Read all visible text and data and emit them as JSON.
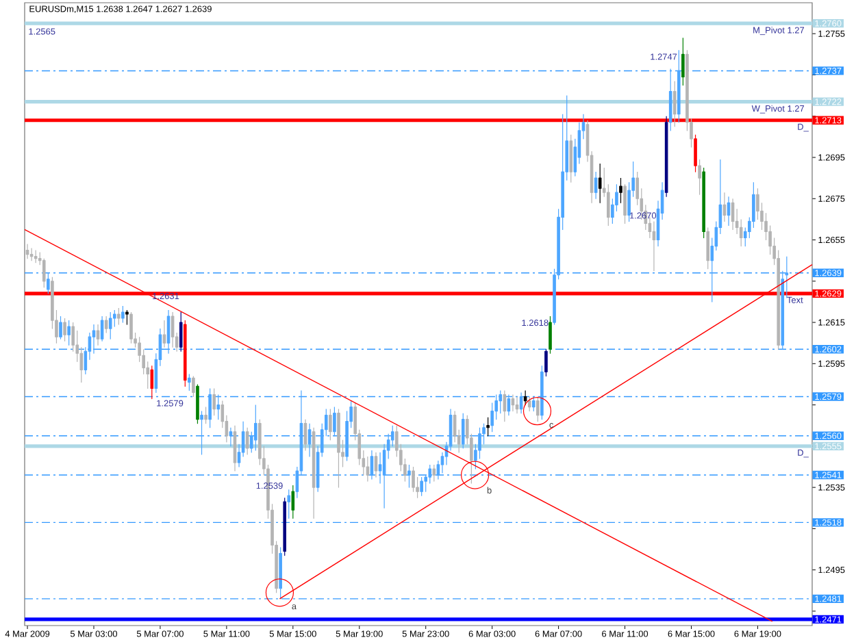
{
  "chart_data": {
    "type": "candlestick",
    "title": "EURUSDm,M15 1.2638 1.2647 1.2627 1.2639",
    "x": [
      "2009-03-04T23:00",
      "2009-03-04T23:15",
      "2009-03-04T23:30",
      "2009-03-04T23:45",
      "2009-03-05T00:00",
      "2009-03-05T00:15",
      "2009-03-05T00:30",
      "2009-03-05T00:45",
      "2009-03-05T01:00",
      "2009-03-05T01:15",
      "2009-03-05T01:30",
      "2009-03-05T01:45",
      "2009-03-05T02:00",
      "2009-03-05T02:15",
      "2009-03-05T02:30",
      "2009-03-05T02:45",
      "2009-03-05T03:00",
      "2009-03-05T03:15",
      "2009-03-05T03:30",
      "2009-03-05T03:45",
      "2009-03-05T04:00",
      "2009-03-05T04:15",
      "2009-03-05T04:30",
      "2009-03-05T04:45",
      "2009-03-05T05:00",
      "2009-03-05T05:15",
      "2009-03-05T05:30",
      "2009-03-05T05:45",
      "2009-03-05T06:00",
      "2009-03-05T06:15",
      "2009-03-05T06:30",
      "2009-03-05T06:45",
      "2009-03-05T07:00",
      "2009-03-05T07:15",
      "2009-03-05T07:30",
      "2009-03-05T07:45",
      "2009-03-05T08:00",
      "2009-03-05T08:15",
      "2009-03-05T08:30",
      "2009-03-05T08:45",
      "2009-03-05T09:00",
      "2009-03-05T09:15",
      "2009-03-05T09:30",
      "2009-03-05T09:45",
      "2009-03-05T10:00",
      "2009-03-05T10:15",
      "2009-03-05T10:30",
      "2009-03-05T10:45",
      "2009-03-05T11:00",
      "2009-03-05T11:15",
      "2009-03-05T11:30",
      "2009-03-05T11:45",
      "2009-03-05T12:00",
      "2009-03-05T12:15",
      "2009-03-05T12:30",
      "2009-03-05T12:45",
      "2009-03-05T13:00",
      "2009-03-05T13:15",
      "2009-03-05T13:30",
      "2009-03-05T13:45",
      "2009-03-05T14:00",
      "2009-03-05T14:15",
      "2009-03-05T14:30",
      "2009-03-05T14:45",
      "2009-03-05T15:00",
      "2009-03-05T15:15",
      "2009-03-05T15:30",
      "2009-03-05T15:45",
      "2009-03-05T16:00",
      "2009-03-05T16:15",
      "2009-03-05T16:30",
      "2009-03-05T16:45",
      "2009-03-05T17:00",
      "2009-03-05T17:15",
      "2009-03-05T17:30",
      "2009-03-05T17:45",
      "2009-03-05T18:00",
      "2009-03-05T18:15",
      "2009-03-05T18:30",
      "2009-03-05T18:45",
      "2009-03-05T19:00",
      "2009-03-05T19:15",
      "2009-03-05T19:30",
      "2009-03-05T19:45",
      "2009-03-05T20:00",
      "2009-03-05T20:15",
      "2009-03-05T20:30",
      "2009-03-05T20:45",
      "2009-03-05T21:00",
      "2009-03-05T21:15",
      "2009-03-05T21:30",
      "2009-03-05T21:45",
      "2009-03-05T22:00",
      "2009-03-05T22:15",
      "2009-03-05T22:30",
      "2009-03-05T22:45",
      "2009-03-05T23:00",
      "2009-03-05T23:15",
      "2009-03-05T23:30",
      "2009-03-05T23:45",
      "2009-03-06T00:00",
      "2009-03-06T00:15",
      "2009-03-06T00:30",
      "2009-03-06T00:45",
      "2009-03-06T01:00",
      "2009-03-06T01:15",
      "2009-03-06T01:30",
      "2009-03-06T01:45",
      "2009-03-06T02:00",
      "2009-03-06T02:15",
      "2009-03-06T02:30",
      "2009-03-06T02:45",
      "2009-03-06T03:00",
      "2009-03-06T03:15",
      "2009-03-06T03:30",
      "2009-03-06T03:45",
      "2009-03-06T04:00",
      "2009-03-06T04:15",
      "2009-03-06T04:30",
      "2009-03-06T04:45",
      "2009-03-06T05:00",
      "2009-03-06T05:15",
      "2009-03-06T05:30",
      "2009-03-06T05:45",
      "2009-03-06T06:00",
      "2009-03-06T06:15",
      "2009-03-06T06:30",
      "2009-03-06T06:45",
      "2009-03-06T07:00",
      "2009-03-06T07:15",
      "2009-03-06T07:30",
      "2009-03-06T07:45",
      "2009-03-06T08:00",
      "2009-03-06T08:15",
      "2009-03-06T08:30",
      "2009-03-06T08:45",
      "2009-03-06T09:00",
      "2009-03-06T09:15",
      "2009-03-06T09:30",
      "2009-03-06T09:45",
      "2009-03-06T10:00",
      "2009-03-06T10:15",
      "2009-03-06T10:30",
      "2009-03-06T10:45",
      "2009-03-06T11:00",
      "2009-03-06T11:15",
      "2009-03-06T11:30",
      "2009-03-06T11:45",
      "2009-03-06T12:00",
      "2009-03-06T12:15",
      "2009-03-06T12:30",
      "2009-03-06T12:45",
      "2009-03-06T13:00",
      "2009-03-06T13:15",
      "2009-03-06T13:30",
      "2009-03-06T13:45",
      "2009-03-06T14:00",
      "2009-03-06T14:15",
      "2009-03-06T14:30",
      "2009-03-06T14:45",
      "2009-03-06T15:00",
      "2009-03-06T15:15",
      "2009-03-06T15:30",
      "2009-03-06T15:45",
      "2009-03-06T16:00",
      "2009-03-06T16:15",
      "2009-03-06T16:30",
      "2009-03-06T16:45",
      "2009-03-06T17:00",
      "2009-03-06T17:15",
      "2009-03-06T17:30",
      "2009-03-06T17:45",
      "2009-03-06T18:00",
      "2009-03-06T18:15",
      "2009-03-06T18:30",
      "2009-03-06T18:45",
      "2009-03-06T19:00",
      "2009-03-06T19:15",
      "2009-03-06T19:30",
      "2009-03-06T19:45",
      "2009-03-06T20:00",
      "2009-03-06T20:15",
      "2009-03-06T20:30",
      "2009-03-06T20:45"
    ],
    "ohlc": [
      [
        1.265,
        1.2653,
        1.2646,
        1.2648
      ],
      [
        1.2648,
        1.2651,
        1.2645,
        1.2647
      ],
      [
        1.2647,
        1.265,
        1.2644,
        1.2646
      ],
      [
        1.2646,
        1.2649,
        1.2643,
        1.2645
      ],
      [
        1.2645,
        1.2646,
        1.2632,
        1.2635
      ],
      [
        1.2631,
        1.2639,
        1.2629,
        1.2636
      ],
      [
        1.2635,
        1.2637,
        1.2612,
        1.2616
      ],
      [
        1.2616,
        1.2621,
        1.2605,
        1.2608
      ],
      [
        1.2608,
        1.2618,
        1.2607,
        1.2615
      ],
      [
        1.2615,
        1.2617,
        1.2606,
        1.2609
      ],
      [
        1.2609,
        1.2616,
        1.2604,
        1.2613
      ],
      [
        1.2613,
        1.2615,
        1.2601,
        1.2604
      ],
      [
        1.2604,
        1.2611,
        1.2596,
        1.26
      ],
      [
        1.26,
        1.2603,
        1.2586,
        1.2592
      ],
      [
        1.2592,
        1.2603,
        1.259,
        1.2601
      ],
      [
        1.2601,
        1.261,
        1.2597,
        1.2608
      ],
      [
        1.2608,
        1.2614,
        1.26,
        1.2611
      ],
      [
        1.2611,
        1.2614,
        1.2604,
        1.2607
      ],
      [
        1.2607,
        1.2618,
        1.2606,
        1.2616
      ],
      [
        1.2616,
        1.2618,
        1.261,
        1.2612
      ],
      [
        1.2612,
        1.262,
        1.2607,
        1.2617
      ],
      [
        1.2617,
        1.2621,
        1.2613,
        1.2619
      ],
      [
        1.2619,
        1.2622,
        1.2614,
        1.2617
      ],
      [
        1.2617,
        1.2623,
        1.2615,
        1.262
      ],
      [
        1.262,
        1.2621,
        1.2614,
        1.2619
      ],
      [
        1.2619,
        1.262,
        1.2605,
        1.2607
      ],
      [
        1.2607,
        1.261,
        1.2603,
        1.2605
      ],
      [
        1.2605,
        1.2608,
        1.2596,
        1.2599
      ],
      [
        1.2599,
        1.2602,
        1.259,
        1.2593
      ],
      [
        1.2593,
        1.2596,
        1.2583,
        1.259
      ],
      [
        1.2592,
        1.2594,
        1.2578,
        1.2583
      ],
      [
        1.2583,
        1.26,
        1.2581,
        1.2597
      ],
      [
        1.2597,
        1.2612,
        1.2594,
        1.2609
      ],
      [
        1.2609,
        1.2616,
        1.2603,
        1.2605
      ],
      [
        1.2605,
        1.2621,
        1.26,
        1.2618
      ],
      [
        1.2618,
        1.262,
        1.2603,
        1.2608
      ],
      [
        1.2608,
        1.261,
        1.2601,
        1.2603
      ],
      [
        1.2603,
        1.262,
        1.2601,
        1.2615
      ],
      [
        1.2614,
        1.2616,
        1.2584,
        1.2587
      ],
      [
        1.2586,
        1.259,
        1.2582,
        1.2588
      ],
      [
        1.2588,
        1.2589,
        1.2579,
        1.2581
      ],
      [
        1.2584,
        1.2585,
        1.2566,
        1.2568
      ],
      [
        1.2568,
        1.2572,
        1.2551,
        1.257
      ],
      [
        1.257,
        1.2574,
        1.2566,
        1.2568
      ],
      [
        1.2568,
        1.2583,
        1.2564,
        1.258
      ],
      [
        1.258,
        1.2583,
        1.257,
        1.2573
      ],
      [
        1.2573,
        1.258,
        1.2568,
        1.2575
      ],
      [
        1.2575,
        1.2577,
        1.2564,
        1.2567
      ],
      [
        1.2567,
        1.257,
        1.2557,
        1.256
      ],
      [
        1.256,
        1.2564,
        1.2555,
        1.2562
      ],
      [
        1.2562,
        1.2565,
        1.2543,
        1.2547
      ],
      [
        1.2547,
        1.2556,
        1.2545,
        1.2552
      ],
      [
        1.2552,
        1.2567,
        1.255,
        1.2562
      ],
      [
        1.2562,
        1.2564,
        1.2551,
        1.2554
      ],
      [
        1.2554,
        1.2562,
        1.2552,
        1.256
      ],
      [
        1.2558,
        1.2575,
        1.2553,
        1.2566
      ],
      [
        1.2566,
        1.2568,
        1.2546,
        1.2549
      ],
      [
        1.2549,
        1.2555,
        1.2541,
        1.2544
      ],
      [
        1.2544,
        1.2546,
        1.252,
        1.2524
      ],
      [
        1.2524,
        1.2527,
        1.2503,
        1.2507
      ],
      [
        1.2507,
        1.2509,
        1.2484,
        1.2486
      ],
      [
        1.2486,
        1.2506,
        1.2481,
        1.2503
      ],
      [
        1.2504,
        1.253,
        1.2502,
        1.2528
      ],
      [
        1.2528,
        1.2534,
        1.252,
        1.2531
      ],
      [
        1.2524,
        1.2536,
        1.252,
        1.2533
      ],
      [
        1.2533,
        1.2545,
        1.253,
        1.2543
      ],
      [
        1.2543,
        1.2582,
        1.2541,
        1.2566
      ],
      [
        1.2566,
        1.2568,
        1.2553,
        1.2556
      ],
      [
        1.2556,
        1.2566,
        1.255,
        1.2563
      ],
      [
        1.2562,
        1.2564,
        1.252,
        1.2535
      ],
      [
        1.2535,
        1.2555,
        1.2533,
        1.2552
      ],
      [
        1.2552,
        1.2566,
        1.255,
        1.2563
      ],
      [
        1.2563,
        1.2573,
        1.256,
        1.257
      ],
      [
        1.257,
        1.2573,
        1.2558,
        1.2562
      ],
      [
        1.2562,
        1.2574,
        1.256,
        1.2571
      ],
      [
        1.2571,
        1.2573,
        1.2535,
        1.2552
      ],
      [
        1.2552,
        1.2558,
        1.2545,
        1.255
      ],
      [
        1.255,
        1.2572,
        1.2548,
        1.2567
      ],
      [
        1.2567,
        1.2577,
        1.2564,
        1.2574
      ],
      [
        1.2574,
        1.2576,
        1.2558,
        1.2561
      ],
      [
        1.2561,
        1.2563,
        1.2546,
        1.2549
      ],
      [
        1.2549,
        1.2553,
        1.2541,
        1.2545
      ],
      [
        1.2545,
        1.255,
        1.2538,
        1.2541
      ],
      [
        1.2541,
        1.2553,
        1.2539,
        1.255
      ],
      [
        1.255,
        1.2552,
        1.254,
        1.2543
      ],
      [
        1.2543,
        1.2552,
        1.2537,
        1.2546
      ],
      [
        1.2541,
        1.2556,
        1.2525,
        1.2553
      ],
      [
        1.2553,
        1.2561,
        1.2549,
        1.2558
      ],
      [
        1.2558,
        1.2565,
        1.2555,
        1.2562
      ],
      [
        1.2562,
        1.2565,
        1.255,
        1.2553
      ],
      [
        1.2553,
        1.2556,
        1.2543,
        1.2546
      ],
      [
        1.2546,
        1.2549,
        1.2538,
        1.2541
      ],
      [
        1.2541,
        1.2546,
        1.2535,
        1.2543
      ],
      [
        1.2543,
        1.2545,
        1.2533,
        1.2535
      ],
      [
        1.2535,
        1.254,
        1.253,
        1.2533
      ],
      [
        1.2533,
        1.254,
        1.2531,
        1.2538
      ],
      [
        1.2538,
        1.2541,
        1.2533,
        1.254
      ],
      [
        1.254,
        1.2546,
        1.2537,
        1.2544
      ],
      [
        1.2544,
        1.2546,
        1.2538,
        1.2541
      ],
      [
        1.2541,
        1.2548,
        1.2539,
        1.2546
      ],
      [
        1.2546,
        1.2552,
        1.2542,
        1.255
      ],
      [
        1.255,
        1.2557,
        1.2546,
        1.2555
      ],
      [
        1.2555,
        1.2573,
        1.2553,
        1.257
      ],
      [
        1.257,
        1.2572,
        1.2557,
        1.256
      ],
      [
        1.256,
        1.2563,
        1.2552,
        1.2556
      ],
      [
        1.2556,
        1.2571,
        1.2554,
        1.2568
      ],
      [
        1.2568,
        1.257,
        1.2556,
        1.2559
      ],
      [
        1.2559,
        1.2561,
        1.2537,
        1.2548
      ],
      [
        1.2548,
        1.2556,
        1.2544,
        1.2553
      ],
      [
        1.2553,
        1.2564,
        1.2549,
        1.2561
      ],
      [
        1.2561,
        1.2566,
        1.2556,
        1.2564
      ],
      [
        1.2564,
        1.2569,
        1.256,
        1.2565
      ],
      [
        1.2565,
        1.2576,
        1.2562,
        1.2572
      ],
      [
        1.2572,
        1.258,
        1.2568,
        1.2577
      ],
      [
        1.2577,
        1.2582,
        1.2571,
        1.258
      ],
      [
        1.258,
        1.2582,
        1.2567,
        1.2572
      ],
      [
        1.2572,
        1.258,
        1.257,
        1.2578
      ],
      [
        1.2578,
        1.258,
        1.2572,
        1.2575
      ],
      [
        1.2575,
        1.2579,
        1.2571,
        1.2573
      ],
      [
        1.2573,
        1.2581,
        1.2571,
        1.2579
      ],
      [
        1.2579,
        1.2582,
        1.2575,
        1.2577
      ],
      [
        1.2577,
        1.2579,
        1.2572,
        1.2574
      ],
      [
        1.2574,
        1.2579,
        1.2572,
        1.2577
      ],
      [
        1.2577,
        1.2579,
        1.2567,
        1.257
      ],
      [
        1.257,
        1.2594,
        1.2568,
        1.2591
      ],
      [
        1.2591,
        1.2602,
        1.2589,
        1.2601
      ],
      [
        1.2602,
        1.2618,
        1.26,
        1.2615
      ],
      [
        1.2615,
        1.2641,
        1.2614,
        1.2638
      ],
      [
        1.2638,
        1.267,
        1.2636,
        1.2666
      ],
      [
        1.2666,
        1.2716,
        1.266,
        1.2688
      ],
      [
        1.2688,
        1.2725,
        1.2684,
        1.2703
      ],
      [
        1.2703,
        1.2706,
        1.2683,
        1.2688
      ],
      [
        1.2688,
        1.2704,
        1.2686,
        1.27
      ],
      [
        1.2695,
        1.2712,
        1.2692,
        1.2708
      ],
      [
        1.2708,
        1.2716,
        1.2704,
        1.2712
      ],
      [
        1.2711,
        1.2713,
        1.2693,
        1.2696
      ],
      [
        1.2696,
        1.2698,
        1.2673,
        1.2678
      ],
      [
        1.2678,
        1.2688,
        1.2675,
        1.2685
      ],
      [
        1.2685,
        1.2692,
        1.2673,
        1.268
      ],
      [
        1.268,
        1.269,
        1.2676,
        1.2678
      ],
      [
        1.2678,
        1.2682,
        1.2662,
        1.2666
      ],
      [
        1.2666,
        1.2675,
        1.2663,
        1.2672
      ],
      [
        1.2672,
        1.2682,
        1.2669,
        1.2678
      ],
      [
        1.2678,
        1.2685,
        1.2673,
        1.2681
      ],
      [
        1.2681,
        1.2682,
        1.2663,
        1.2667
      ],
      [
        1.2667,
        1.2683,
        1.2664,
        1.2679
      ],
      [
        1.2679,
        1.2693,
        1.2676,
        1.2685
      ],
      [
        1.2685,
        1.2688,
        1.2672,
        1.2675
      ],
      [
        1.2675,
        1.268,
        1.2665,
        1.2669
      ],
      [
        1.2669,
        1.2672,
        1.266,
        1.2663
      ],
      [
        1.2663,
        1.2666,
        1.2656,
        1.2659
      ],
      [
        1.2659,
        1.2664,
        1.264,
        1.2655
      ],
      [
        1.2655,
        1.2674,
        1.2652,
        1.267
      ],
      [
        1.2668,
        1.2683,
        1.2665,
        1.2679
      ],
      [
        1.2678,
        1.2715,
        1.2676,
        1.2712
      ],
      [
        1.2712,
        1.2738,
        1.2708,
        1.2727
      ],
      [
        1.2727,
        1.2732,
        1.271,
        1.2716
      ],
      [
        1.2716,
        1.2747,
        1.2712,
        1.2737
      ],
      [
        1.2734,
        1.2753,
        1.273,
        1.2745
      ],
      [
        1.2745,
        1.2747,
        1.2708,
        1.2712
      ],
      [
        1.2712,
        1.2714,
        1.27,
        1.2704
      ],
      [
        1.2704,
        1.2706,
        1.2688,
        1.2691
      ],
      [
        1.2691,
        1.2694,
        1.2677,
        1.2685
      ],
      [
        1.2688,
        1.269,
        1.2656,
        1.2659
      ],
      [
        1.2659,
        1.2661,
        1.2641,
        1.2645
      ],
      [
        1.2645,
        1.2656,
        1.2625,
        1.2652
      ],
      [
        1.2652,
        1.2664,
        1.265,
        1.2661
      ],
      [
        1.2661,
        1.2694,
        1.2658,
        1.2672
      ],
      [
        1.2672,
        1.2678,
        1.2664,
        1.2667
      ],
      [
        1.2667,
        1.2676,
        1.2662,
        1.2673
      ],
      [
        1.2673,
        1.2675,
        1.266,
        1.2664
      ],
      [
        1.2664,
        1.267,
        1.2658,
        1.2661
      ],
      [
        1.2661,
        1.2665,
        1.2652,
        1.2656
      ],
      [
        1.2656,
        1.2661,
        1.2652,
        1.2659
      ],
      [
        1.2659,
        1.2666,
        1.2656,
        1.2664
      ],
      [
        1.2664,
        1.2683,
        1.2661,
        1.2677
      ],
      [
        1.2677,
        1.268,
        1.2665,
        1.2669
      ],
      [
        1.2669,
        1.2673,
        1.266,
        1.2664
      ],
      [
        1.2664,
        1.2668,
        1.2655,
        1.2659
      ],
      [
        1.2659,
        1.2662,
        1.2648,
        1.2652
      ],
      [
        1.2652,
        1.2656,
        1.2643,
        1.2646
      ],
      [
        1.2646,
        1.265,
        1.2602,
        1.2604
      ],
      [
        1.2604,
        1.264,
        1.2602,
        1.2636
      ],
      [
        1.2638,
        1.2647,
        1.2627,
        1.2639
      ]
    ],
    "colors": [
      "#b4b4b4",
      "#b4b4b4",
      "#b4b4b4",
      "#b4b4b4",
      "#b4b4b4",
      "#4da6ff",
      "#b4b4b4",
      "#b4b4b4",
      "#4da6ff",
      "#b4b4b4",
      "#4da6ff",
      "#b4b4b4",
      "#b4b4b4",
      "#b4b4b4",
      "#4da6ff",
      "#4da6ff",
      "#4da6ff",
      "#b4b4b4",
      "#4da6ff",
      "#b4b4b4",
      "#4da6ff",
      "#4da6ff",
      "#b4b4b4",
      "#4da6ff",
      "#000000",
      "#b4b4b4",
      "#b4b4b4",
      "#b4b4b4",
      "#b4b4b4",
      "#b4b4b4",
      "#ff0000",
      "#4da6ff",
      "#4da6ff",
      "#b4b4b4",
      "#4da6ff",
      "#b4b4b4",
      "#b4b4b4",
      "#000080",
      "#ff0000",
      "#4da6ff",
      "#b4b4b4",
      "#008000",
      "#4da6ff",
      "#b4b4b4",
      "#4da6ff",
      "#b4b4b4",
      "#4da6ff",
      "#b4b4b4",
      "#b4b4b4",
      "#4da6ff",
      "#b4b4b4",
      "#4da6ff",
      "#4da6ff",
      "#b4b4b4",
      "#4da6ff",
      "#4da6ff",
      "#b4b4b4",
      "#b4b4b4",
      "#b4b4b4",
      "#b4b4b4",
      "#b4b4b4",
      "#4da6ff",
      "#000080",
      "#4da6ff",
      "#008000",
      "#4da6ff",
      "#4da6ff",
      "#b4b4b4",
      "#4da6ff",
      "#b4b4b4",
      "#4da6ff",
      "#4da6ff",
      "#4da6ff",
      "#b4b4b4",
      "#4da6ff",
      "#b4b4b4",
      "#b4b4b4",
      "#4da6ff",
      "#4da6ff",
      "#b4b4b4",
      "#b4b4b4",
      "#b4b4b4",
      "#b4b4b4",
      "#4da6ff",
      "#b4b4b4",
      "#4da6ff",
      "#4da6ff",
      "#4da6ff",
      "#4da6ff",
      "#b4b4b4",
      "#b4b4b4",
      "#b4b4b4",
      "#4da6ff",
      "#b4b4b4",
      "#b4b4b4",
      "#4da6ff",
      "#4da6ff",
      "#4da6ff",
      "#b4b4b4",
      "#4da6ff",
      "#4da6ff",
      "#4da6ff",
      "#4da6ff",
      "#b4b4b4",
      "#b4b4b4",
      "#4da6ff",
      "#b4b4b4",
      "#b4b4b4",
      "#4da6ff",
      "#4da6ff",
      "#4da6ff",
      "#000000",
      "#4da6ff",
      "#4da6ff",
      "#4da6ff",
      "#b4b4b4",
      "#4da6ff",
      "#b4b4b4",
      "#b4b4b4",
      "#4da6ff",
      "#000000",
      "#b4b4b4",
      "#4da6ff",
      "#b4b4b4",
      "#4da6ff",
      "#000080",
      "#008000",
      "#4da6ff",
      "#4da6ff",
      "#4da6ff",
      "#4da6ff",
      "#b4b4b4",
      "#4da6ff",
      "#4da6ff",
      "#4da6ff",
      "#b4b4b4",
      "#b4b4b4",
      "#4da6ff",
      "#000000",
      "#b4b4b4",
      "#b4b4b4",
      "#4da6ff",
      "#4da6ff",
      "#000000",
      "#b4b4b4",
      "#4da6ff",
      "#4da6ff",
      "#b4b4b4",
      "#b4b4b4",
      "#b4b4b4",
      "#b4b4b4",
      "#b4b4b4",
      "#4da6ff",
      "#4da6ff",
      "#000080",
      "#4da6ff",
      "#b4b4b4",
      "#4da6ff",
      "#008000",
      "#b4b4b4",
      "#b4b4b4",
      "#ff0000",
      "#b4b4b4",
      "#008000",
      "#b4b4b4",
      "#4da6ff",
      "#4da6ff",
      "#4da6ff",
      "#b4b4b4",
      "#4da6ff",
      "#b4b4b4",
      "#b4b4b4",
      "#b4b4b4",
      "#4da6ff",
      "#4da6ff",
      "#4da6ff",
      "#b4b4b4",
      "#b4b4b4",
      "#b4b4b4",
      "#b4b4b4",
      "#b4b4b4",
      "#b4b4b4",
      "#4da6ff",
      "#4da6ff"
    ],
    "series": [
      {
        "type": "line",
        "x": [
          "2009-03-04T22:50",
          "2009-03-06T19:53"
        ],
        "values": [
          1.266,
          1.247
        ],
        "color": "#ff0000"
      },
      {
        "type": "line",
        "x": [
          "2009-03-05T14:12",
          "2009-03-06T22:17"
        ],
        "values": [
          1.2481,
          1.2643
        ],
        "color": "#ff0000"
      },
      {
        "type": "scatter",
        "x": [
          "2009-03-05T14:12",
          "2009-03-06T01:58",
          "2009-03-06T05:43"
        ],
        "values": [
          1.2484,
          1.2541,
          1.2572
        ],
        "color": "#ff0000",
        "marker": "circle",
        "value_labels": [
          "a",
          "b",
          "c"
        ]
      }
    ],
    "xlim": [
      "2009-03-04T22:50",
      "2009-03-06T22:17"
    ],
    "ylim": [
      1.2468,
      1.277
    ],
    "xticks": [
      {
        "value": "2009-03-04T23:00",
        "label": "4 Mar 2009"
      },
      {
        "value": "2009-03-05T03:00",
        "label": "5 Mar 03:00"
      },
      {
        "value": "2009-03-05T07:00",
        "label": "5 Mar 07:00"
      },
      {
        "value": "2009-03-05T11:00",
        "label": "5 Mar 11:00"
      },
      {
        "value": "2009-03-05T15:00",
        "label": "5 Mar 15:00"
      },
      {
        "value": "2009-03-05T19:00",
        "label": "5 Mar 19:00"
      },
      {
        "value": "2009-03-05T23:00",
        "label": "5 Mar 23:00"
      },
      {
        "value": "2009-03-06T03:00",
        "label": "6 Mar 03:00"
      },
      {
        "value": "2009-03-06T07:00",
        "label": "6 Mar 07:00"
      },
      {
        "value": "2009-03-06T11:00",
        "label": "6 Mar 11:00"
      },
      {
        "value": "2009-03-06T15:00",
        "label": "6 Mar 15:00"
      },
      {
        "value": "2009-03-06T19:00",
        "label": "6 Mar 19:00"
      }
    ],
    "yticks": [
      {
        "value": 1.2475,
        "label": null
      },
      1.2495,
      {
        "value": 1.2515,
        "label": null
      },
      1.2535,
      {
        "value": 1.2555,
        "label": null
      },
      {
        "value": 1.2575,
        "label": null
      },
      1.2595,
      1.2615,
      {
        "value": 1.2635,
        "label": null
      },
      1.2655,
      1.2675,
      1.2695,
      {
        "value": 1.2715,
        "label": null
      },
      {
        "value": 1.2735,
        "label": null
      },
      1.2755
    ],
    "ref_lines": [
      {
        "axis": "y",
        "value": 1.276,
        "label": "1.2760",
        "color": "#add8e6",
        "line_style": "solid"
      },
      {
        "axis": "y",
        "value": 1.2737,
        "label": "1.2737",
        "color": "#3399ff",
        "line_style": "dashdot"
      },
      {
        "axis": "y",
        "value": 1.2722,
        "label": "1.2722",
        "color": "#add8e6",
        "line_style": "solid"
      },
      {
        "axis": "y",
        "value": 1.2713,
        "label": "1.2713",
        "color": "#ff0000",
        "line_style": "solid"
      },
      {
        "axis": "y",
        "value": 1.2639,
        "label": "1.2639",
        "color": "#3399ff",
        "line_style": "dashdot"
      },
      {
        "axis": "y",
        "value": 1.2629,
        "label": "1.2629",
        "color": "#ff0000",
        "line_style": "solid"
      },
      {
        "axis": "y",
        "value": 1.2602,
        "label": "1.2602",
        "color": "#3399ff",
        "line_style": "dashdot"
      },
      {
        "axis": "y",
        "value": 1.2579,
        "label": "1.2579",
        "color": "#3399ff",
        "line_style": "dashdot"
      },
      {
        "axis": "y",
        "value": 1.256,
        "label": "1.2560",
        "color": "#3399ff",
        "line_style": "dashdot"
      },
      {
        "axis": "y",
        "value": 1.2555,
        "label": "1.2555",
        "color": "#add8e6",
        "line_style": "solid"
      },
      {
        "axis": "y",
        "value": 1.2541,
        "label": "1.2541",
        "color": "#3399ff",
        "line_style": "dashdot"
      },
      {
        "axis": "y",
        "value": 1.2518,
        "label": "1.2518",
        "color": "#3399ff",
        "line_style": "dashdot"
      },
      {
        "axis": "y",
        "value": 1.2481,
        "label": "1.2481",
        "color": "#3399ff",
        "line_style": "dashdot"
      },
      {
        "axis": "y",
        "value": 1.2471,
        "label": "1.2471",
        "color": "#0000ff",
        "line_style": "solid"
      }
    ],
    "annotations": [
      {
        "text": "1.2631",
        "x": "2009-03-05T08:15",
        "y": 1.2631
      },
      {
        "text": "1.2579",
        "x": "2009-03-05T08:30",
        "y": 1.2579
      },
      "1.2565",
      {
        "text": "1.2539",
        "x": "2009-03-05T14:30",
        "y": 1.2539
      },
      {
        "text": "1.2618",
        "x": "2009-03-06T06:30",
        "y": 1.2618
      },
      {
        "text": "1.2747",
        "x": "2009-03-06T14:15",
        "y": 1.2747
      },
      {
        "text": "1.2670",
        "x": "2009-03-06T13:00",
        "y": 1.267
      },
      {
        "text": "M_Pivot 1.27",
        "x": "2009-03-06T21:55",
        "y": 1.276
      },
      {
        "text": "W_Pivot 1.27",
        "x": "2009-03-06T21:55",
        "y": 1.2722
      },
      {
        "text": "D_",
        "x": "2009-03-06T22:10",
        "y": 1.2713
      },
      {
        "text": "D_",
        "x": "2009-03-06T22:10",
        "y": 1.2555
      },
      {
        "text": "Text",
        "x": "2009-03-06T21:50",
        "y": 1.2629
      }
    ]
  }
}
